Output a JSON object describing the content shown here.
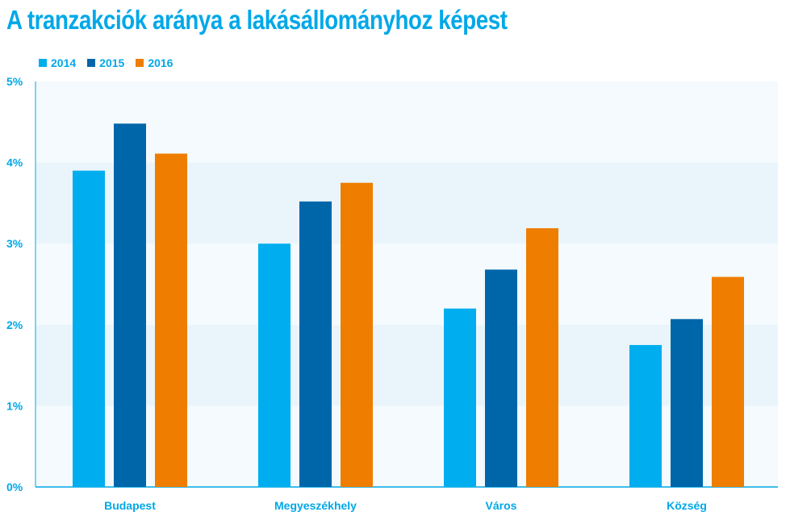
{
  "chart_data": {
    "type": "bar",
    "title": "A tranzakciók aránya a lakásállományhoz képest",
    "categories": [
      "Budapest",
      "Megyeszékhely",
      "Város",
      "Község"
    ],
    "series": [
      {
        "name": "2014",
        "color": "#00aeef",
        "values": [
          3.9,
          3.0,
          2.2,
          1.75
        ]
      },
      {
        "name": "2015",
        "color": "#0066aa",
        "values": [
          4.48,
          3.52,
          2.68,
          2.07
        ]
      },
      {
        "name": "2016",
        "color": "#ee7d00",
        "values": [
          4.11,
          3.75,
          3.19,
          2.59
        ]
      }
    ],
    "ylim": [
      0,
      5
    ],
    "yticks": [
      "0%",
      "1%",
      "2%",
      "3%",
      "4%",
      "5%"
    ],
    "ytick_values": [
      0,
      1,
      2,
      3,
      4,
      5
    ],
    "grid": true,
    "legend_position": "top-left"
  }
}
